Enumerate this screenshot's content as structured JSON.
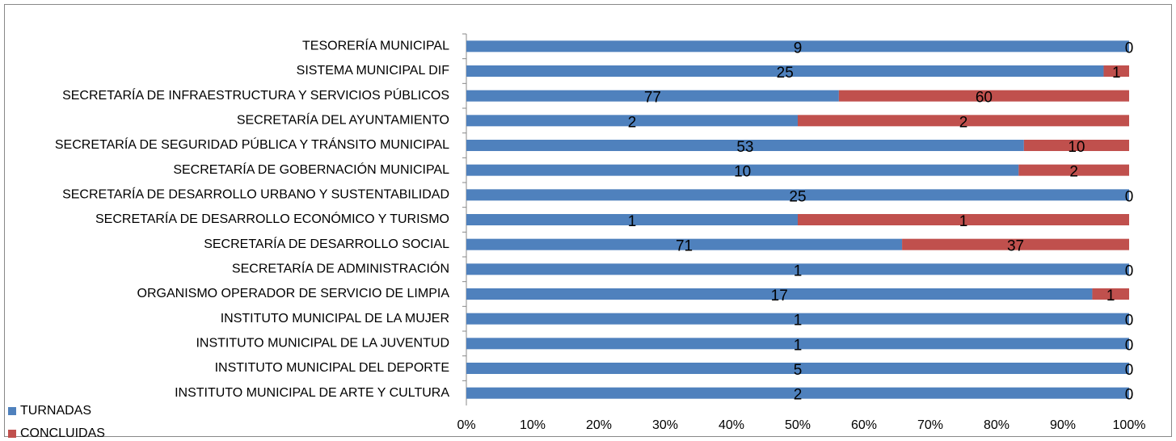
{
  "chart_data": {
    "type": "bar100h",
    "categories": [
      "TESORERÍA MUNICIPAL",
      "SISTEMA MUNICIPAL DIF",
      "SECRETARÍA DE INFRAESTRUCTURA Y SERVICIOS PÚBLICOS",
      "SECRETARÍA DEL AYUNTAMIENTO",
      "SECRETARÍA DE SEGURIDAD PÚBLICA Y TRÁNSITO MUNICIPAL",
      "SECRETARÍA DE GOBERNACIÓN MUNICIPAL",
      "SECRETARÍA DE DESARROLLO URBANO Y SUSTENTABILIDAD",
      "SECRETARÍA DE DESARROLLO ECONÓMICO Y TURISMO",
      "SECRETARÍA DE DESARROLLO SOCIAL",
      "SECRETARÍA DE ADMINISTRACIÓN",
      "ORGANISMO OPERADOR DE SERVICIO DE LIMPIA",
      "INSTITUTO MUNICIPAL DE LA MUJER",
      "INSTITUTO MUNICIPAL DE LA JUVENTUD",
      "INSTITUTO MUNICIPAL DEL DEPORTE",
      "INSTITUTO MUNICIPAL DE ARTE Y CULTURA"
    ],
    "series": [
      {
        "name": "TURNADAS",
        "color": "#4f81bd",
        "values": [
          9,
          25,
          77,
          2,
          53,
          10,
          25,
          1,
          71,
          1,
          17,
          1,
          1,
          5,
          2
        ]
      },
      {
        "name": "CONCLUIDAS",
        "color": "#c0504d",
        "values": [
          0,
          1,
          60,
          2,
          10,
          2,
          0,
          1,
          37,
          0,
          1,
          0,
          0,
          0,
          0
        ]
      }
    ],
    "xlim": [
      0,
      100
    ],
    "xticks": [
      {
        "value": 0,
        "label": "0%"
      },
      {
        "value": 10,
        "label": "10%"
      },
      {
        "value": 20,
        "label": "20%"
      },
      {
        "value": 30,
        "label": "30%"
      },
      {
        "value": 40,
        "label": "40%"
      },
      {
        "value": 50,
        "label": "50%"
      },
      {
        "value": 60,
        "label": "60%"
      },
      {
        "value": 70,
        "label": "70%"
      },
      {
        "value": 80,
        "label": "80%"
      },
      {
        "value": 90,
        "label": "90%"
      },
      {
        "value": 100,
        "label": "100%"
      }
    ],
    "legend": "bottom-left"
  }
}
